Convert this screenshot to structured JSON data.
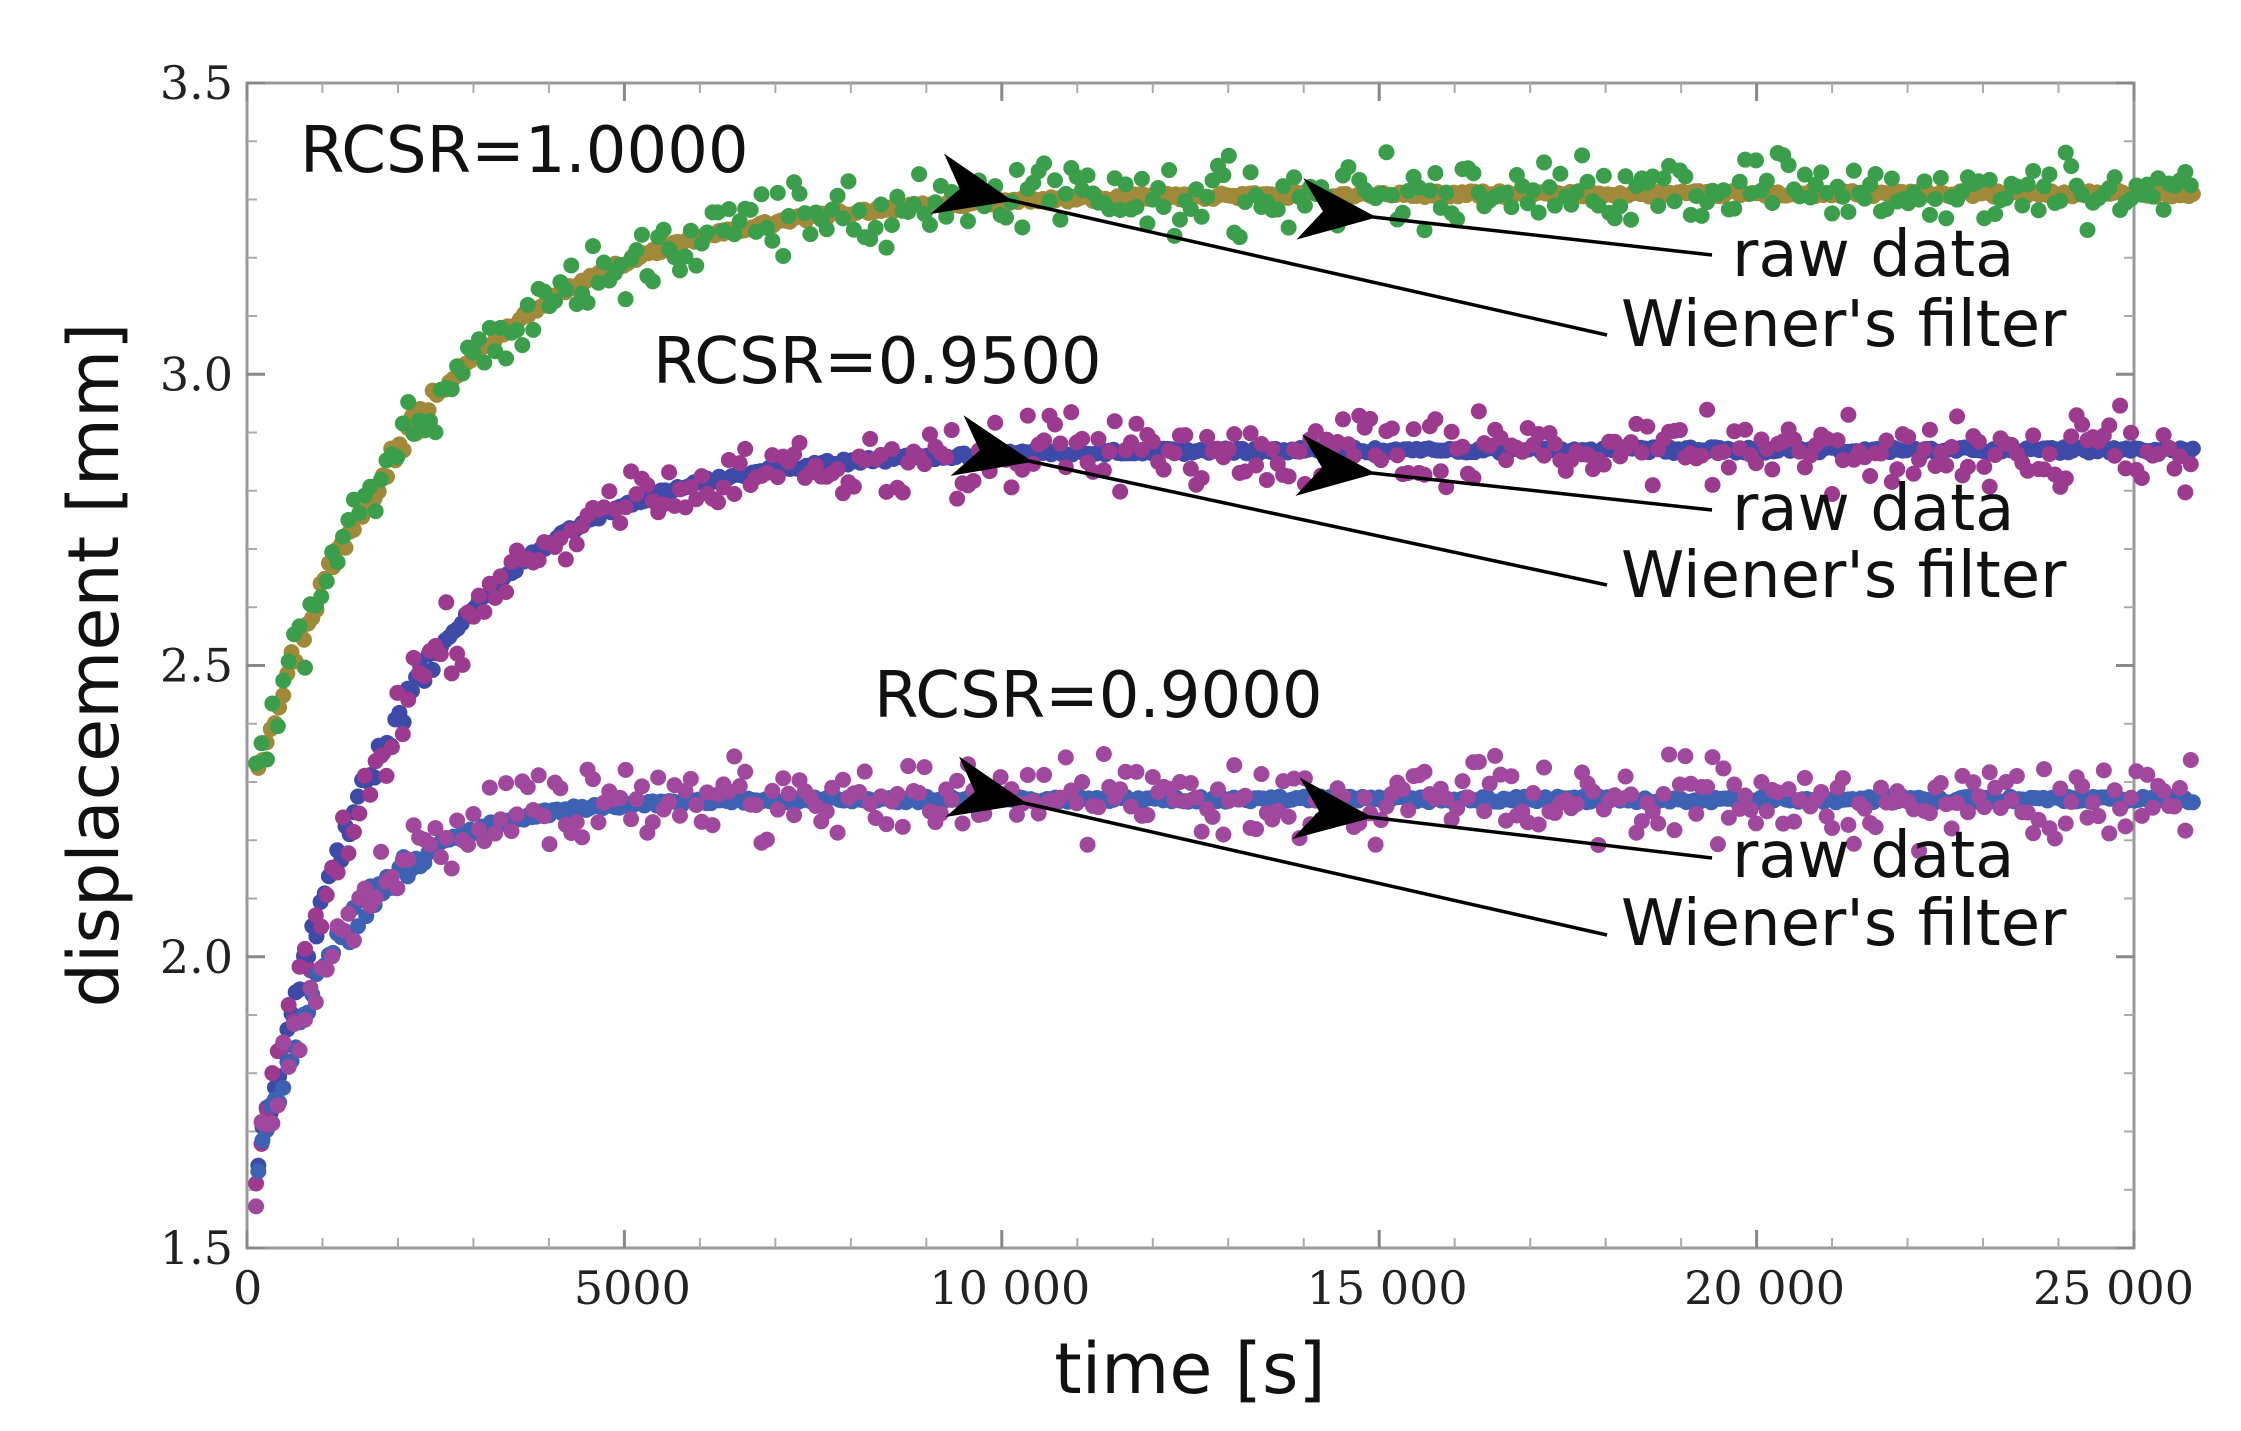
{
  "chart_data": {
    "type": "scatter",
    "title": "",
    "xlabel": "time [s]",
    "ylabel": "displacement [mm]",
    "xlim": [
      0,
      25000
    ],
    "ylim": [
      1.5,
      3.5
    ],
    "grid": false,
    "x_ticks": [
      {
        "value": 0,
        "label": "0"
      },
      {
        "value": 5000,
        "label": "5000"
      },
      {
        "value": 10000,
        "label": "10 000"
      },
      {
        "value": 15000,
        "label": "15 000"
      },
      {
        "value": 20000,
        "label": "20 000"
      },
      {
        "value": 25000,
        "label": "25 000"
      }
    ],
    "y_ticks": [
      {
        "value": 1.5,
        "label": "1.5"
      },
      {
        "value": 2.0,
        "label": "2.0"
      },
      {
        "value": 2.5,
        "label": "2.5"
      },
      {
        "value": 3.0,
        "label": "3.0"
      },
      {
        "value": 3.5,
        "label": "3.5"
      }
    ],
    "series": [
      {
        "name": "RCSR=1.0000",
        "label": "RCSR=1.0000",
        "start": 2.27,
        "plateau": 3.31,
        "tau": 2300,
        "noise": 0.028,
        "raw_color": "#3a9e4a",
        "filter_color": "#a08a3a",
        "raw_label": "raw data",
        "filter_label": "Wiener's filter"
      },
      {
        "name": "RCSR=0.9500",
        "label": "RCSR=0.9500",
        "start": 1.55,
        "plateau": 2.87,
        "tau": 1900,
        "noise": 0.03,
        "raw_color": "#9b3a8e",
        "filter_color": "#3e4aa8",
        "raw_label": "raw data",
        "filter_label": "Wiener's filter"
      },
      {
        "name": "RCSR=0.9000",
        "label": "RCSR=0.9000",
        "start": 1.55,
        "plateau": 2.27,
        "tau": 1150,
        "noise": 0.03,
        "raw_color": "#a0489e",
        "filter_color": "#3d62b4",
        "raw_label": "raw data",
        "filter_label": "Wiener's filter"
      }
    ]
  }
}
